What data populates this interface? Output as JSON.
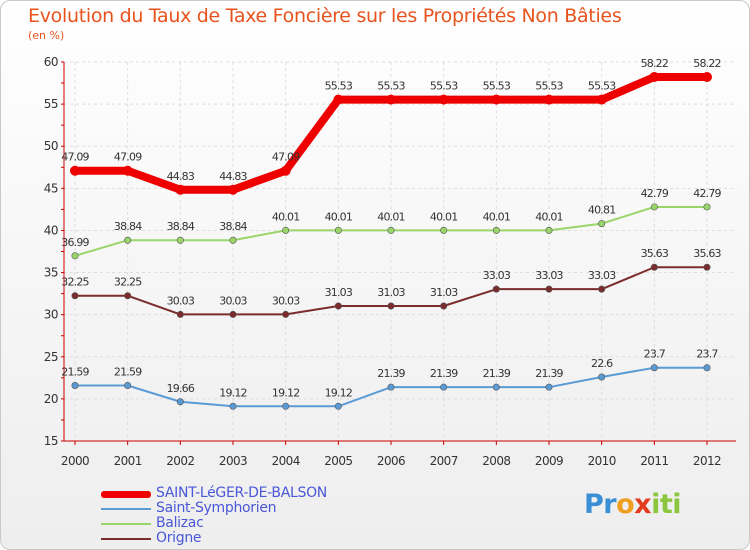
{
  "title": "Evolution du Taux de Taxe Foncière sur les Propriétés Non Bâties",
  "unit": "(en %)",
  "logo": {
    "parts": [
      "Pr",
      "o",
      "x",
      "iti"
    ],
    "colors": [
      "#3a8fd6",
      "#f0a020",
      "#e23a1e",
      "#8cc63f"
    ]
  },
  "chart_data": {
    "type": "line",
    "title": "Evolution du Taux de Taxe Foncière sur les Propriétés Non Bâties",
    "ylabel": "(en %)",
    "xlabel": "",
    "ylim": [
      15,
      60
    ],
    "yticks": [
      15,
      20,
      25,
      30,
      35,
      40,
      45,
      50,
      55,
      60
    ],
    "grid": true,
    "categories": [
      "2000",
      "2001",
      "2002",
      "2003",
      "2004",
      "2005",
      "2006",
      "2007",
      "2008",
      "2009",
      "2010",
      "2011",
      "2012"
    ],
    "series": [
      {
        "name": "SAINT-LéGER-DE-BALSON",
        "color": "#ee0000",
        "bold": true,
        "values": [
          47.09,
          47.09,
          44.83,
          44.83,
          47.09,
          55.53,
          55.53,
          55.53,
          55.53,
          55.53,
          55.53,
          58.22,
          58.22
        ],
        "labels": [
          "47.09",
          "47.09",
          "44.83",
          "44.83",
          "47.09",
          "55.53",
          "55.53",
          "55.53",
          "55.53",
          "55.53",
          "55.53",
          "58.22",
          "58.22"
        ]
      },
      {
        "name": "Saint-Symphorien",
        "color": "#5b9bd5",
        "bold": false,
        "values": [
          21.59,
          21.59,
          19.66,
          19.12,
          19.12,
          19.12,
          21.39,
          21.39,
          21.39,
          21.39,
          22.6,
          23.7,
          23.7
        ],
        "labels": [
          "21.59",
          "21.59",
          "19.66",
          "19.12",
          "19.12",
          "19.12",
          "21.39",
          "21.39",
          "21.39",
          "21.39",
          "22.6",
          "23.7",
          "23.7"
        ]
      },
      {
        "name": "Balizac",
        "color": "#9ad56a",
        "bold": false,
        "values": [
          36.99,
          38.84,
          38.84,
          38.84,
          40.01,
          40.01,
          40.01,
          40.01,
          40.01,
          40.01,
          40.81,
          42.79,
          42.79
        ],
        "labels": [
          "36.99",
          "38.84",
          "38.84",
          "38.84",
          "40.01",
          "40.01",
          "40.01",
          "40.01",
          "40.01",
          "40.01",
          "40.81",
          "42.79",
          "42.79"
        ]
      },
      {
        "name": "Origne",
        "color": "#7b2c2c",
        "bold": false,
        "values": [
          32.25,
          32.25,
          30.03,
          30.03,
          30.03,
          31.03,
          31.03,
          31.03,
          33.03,
          33.03,
          33.03,
          35.63,
          35.63
        ],
        "labels": [
          "32.25",
          "32.25",
          "30.03",
          "30.03",
          "30.03",
          "31.03",
          "31.03",
          "31.03",
          "33.03",
          "33.03",
          "33.03",
          "35.63",
          "35.63"
        ]
      }
    ]
  }
}
